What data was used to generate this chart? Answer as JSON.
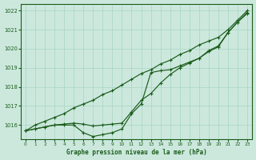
{
  "x": [
    0,
    1,
    2,
    3,
    4,
    5,
    6,
    7,
    8,
    9,
    10,
    11,
    12,
    13,
    14,
    15,
    16,
    17,
    18,
    19,
    20,
    21,
    22,
    23
  ],
  "line_steep": [
    1015.7,
    1016.0,
    1016.2,
    1016.4,
    1016.6,
    1016.9,
    1017.1,
    1017.3,
    1017.6,
    1017.8,
    1018.1,
    1018.4,
    1018.7,
    1018.9,
    1019.2,
    1019.4,
    1019.7,
    1019.9,
    1020.2,
    1020.4,
    1020.6,
    1021.0,
    1021.5,
    1022.0
  ],
  "line_dip": [
    1015.7,
    1015.8,
    1015.9,
    1016.0,
    1016.0,
    1016.0,
    1015.6,
    1015.4,
    1015.5,
    1015.6,
    1015.8,
    1016.6,
    1017.1,
    1018.75,
    1018.85,
    1018.9,
    1019.1,
    1019.3,
    1019.5,
    1019.9,
    1020.15,
    1020.85,
    1021.4,
    1021.9
  ],
  "line_mid": [
    1015.7,
    1015.8,
    1015.9,
    1016.0,
    1016.05,
    1016.1,
    1016.05,
    1015.95,
    1016.0,
    1016.05,
    1016.1,
    1016.7,
    1017.3,
    1017.65,
    1018.2,
    1018.65,
    1019.0,
    1019.25,
    1019.5,
    1019.85,
    1020.1,
    1020.85,
    1021.4,
    1021.85
  ],
  "bg_color": "#cce8dd",
  "grid_color": "#a8d4c4",
  "line_color": "#1a5c1a",
  "xlabel": "Graphe pression niveau de la mer (hPa)",
  "ylim_min": 1015.25,
  "ylim_max": 1022.35,
  "yticks": [
    1016,
    1017,
    1018,
    1019,
    1020,
    1021,
    1022
  ],
  "xticks": [
    0,
    1,
    2,
    3,
    4,
    5,
    6,
    7,
    8,
    9,
    10,
    11,
    12,
    13,
    14,
    15,
    16,
    17,
    18,
    19,
    20,
    21,
    22,
    23
  ]
}
